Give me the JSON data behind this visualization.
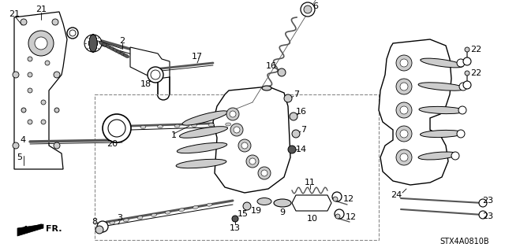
{
  "bg_color": "#ffffff",
  "diagram_code": "STX4A0810B",
  "font_size_label": 8,
  "font_size_code": 7,
  "gray_light": "#cccccc",
  "gray_mid": "#999999",
  "gray_dark": "#555555",
  "black": "#000000"
}
